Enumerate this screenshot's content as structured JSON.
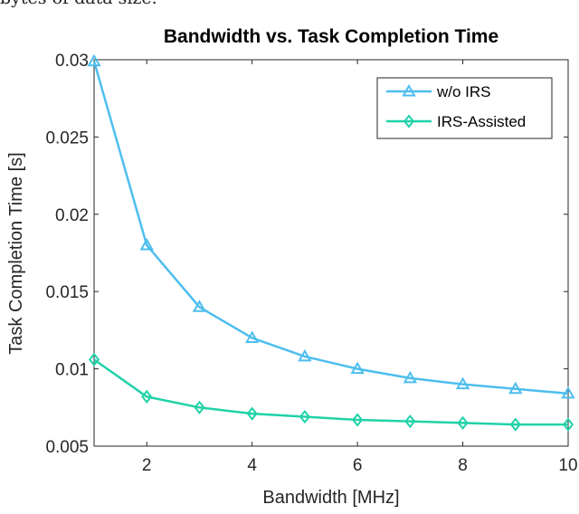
{
  "page_caption": "bytes of data size.",
  "chart_data": {
    "type": "line",
    "title": "Bandwidth vs. Task Completion Time",
    "xlabel": "Bandwidth [MHz]",
    "ylabel": "Task Completion Time [s]",
    "xlim": [
      1,
      10
    ],
    "ylim": [
      0.005,
      0.03
    ],
    "xticks": [
      2,
      4,
      6,
      8,
      10
    ],
    "xtick_labels": [
      "2",
      "4",
      "6",
      "8",
      "10"
    ],
    "yticks": [
      0.005,
      0.01,
      0.015,
      0.02,
      0.025,
      0.03
    ],
    "ytick_labels": [
      "0.005",
      "0.01",
      "0.015",
      "0.02",
      "0.025",
      "0.03"
    ],
    "grid": false,
    "legend_position": "top-right",
    "x": [
      1,
      2,
      3,
      4,
      5,
      6,
      7,
      8,
      9,
      10
    ],
    "series": [
      {
        "name": "w/o IRS",
        "color": "#4DBEEE",
        "marker": "triangle",
        "values": [
          0.0299,
          0.018,
          0.014,
          0.012,
          0.0108,
          0.01,
          0.0094,
          0.009,
          0.0087,
          0.0084
        ]
      },
      {
        "name": "IRS-Assisted",
        "color": "#1FD2A8",
        "marker": "diamond",
        "values": [
          0.0106,
          0.0082,
          0.0075,
          0.0071,
          0.0069,
          0.0067,
          0.0066,
          0.0065,
          0.0064,
          0.0064
        ]
      }
    ]
  }
}
